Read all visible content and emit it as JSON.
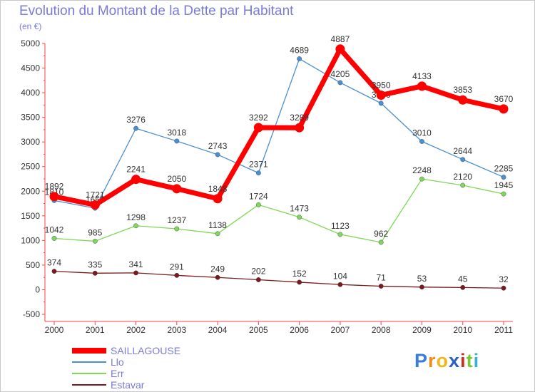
{
  "chart_data": {
    "type": "line",
    "title": "Evolution du Montant de la Dette par Habitant",
    "unit": "(en €)",
    "categories": [
      "2000",
      "2001",
      "2002",
      "2003",
      "2004",
      "2005",
      "2006",
      "2007",
      "2008",
      "2009",
      "2010",
      "2011"
    ],
    "ylim": [
      -500,
      5000
    ],
    "yticks": [
      -500,
      0,
      500,
      1000,
      1500,
      2000,
      2500,
      3000,
      3500,
      4000,
      4500,
      5000
    ],
    "grid": false,
    "legend_position": "bottom-left",
    "series": [
      {
        "name": "SAILLAGOUSE",
        "color": "#ff0000",
        "values": [
          1892,
          1721,
          2241,
          2050,
          1848,
          3292,
          3289,
          4887,
          3950,
          4133,
          3853,
          3670
        ]
      },
      {
        "name": "Llo",
        "color": "#4a8fcf",
        "values": [
          1810,
          1655,
          3276,
          3018,
          2743,
          2371,
          4689,
          4205,
          3786,
          3010,
          2644,
          2285
        ]
      },
      {
        "name": "Err",
        "color": "#7fd856",
        "values": [
          1042,
          985,
          1298,
          1237,
          1138,
          1724,
          1473,
          1123,
          962,
          2248,
          2120,
          1945
        ]
      },
      {
        "name": "Estavar",
        "color": "#7a1a1a",
        "values": [
          374,
          335,
          341,
          291,
          249,
          202,
          152,
          104,
          71,
          53,
          45,
          32
        ]
      }
    ]
  },
  "brand": {
    "letters": [
      "P",
      "r",
      "o",
      "x",
      "i",
      "t",
      "i"
    ],
    "colors": [
      "#3a7dd8",
      "#f08a1c",
      "#f0b81c",
      "#2a5fc8",
      "#d8281c",
      "#7cc43c",
      "#3ab0d8"
    ]
  }
}
